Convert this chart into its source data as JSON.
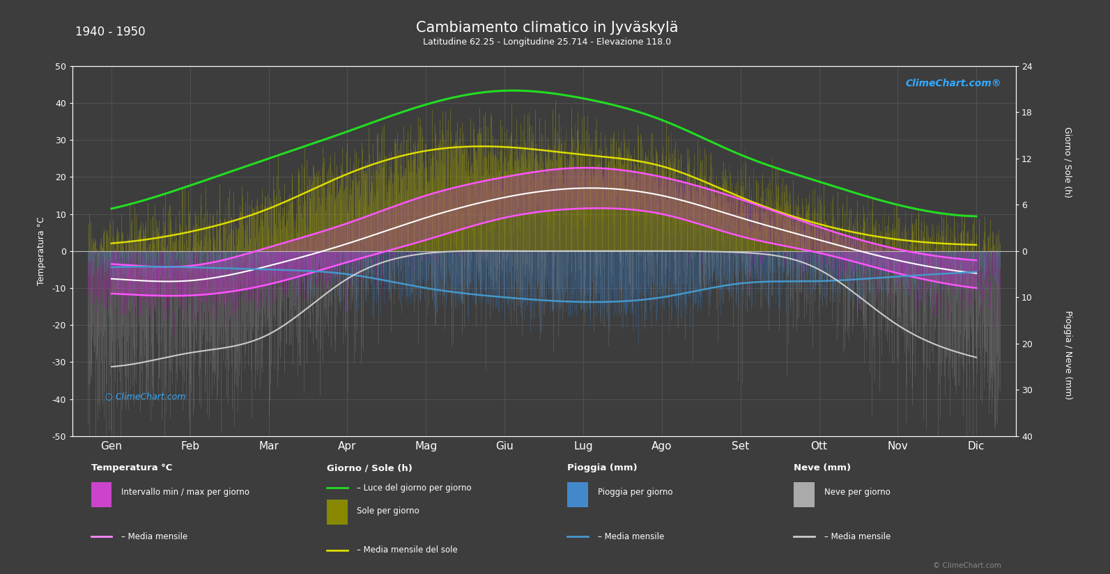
{
  "title": "Cambiamento climatico in Jyväskylä",
  "subtitle": "Latitudine 62.25 - Longitudine 25.714 - Elevazione 118.0",
  "period": "1940 - 1950",
  "background_color": "#3d3d3d",
  "months": [
    "Gen",
    "Feb",
    "Mar",
    "Apr",
    "Mag",
    "Giu",
    "Lug",
    "Ago",
    "Set",
    "Ott",
    "Nov",
    "Dic"
  ],
  "temp_mean": [
    -7.5,
    -8.0,
    -4.0,
    2.0,
    9.0,
    14.5,
    17.0,
    15.0,
    9.0,
    3.0,
    -2.5,
    -6.0
  ],
  "temp_max_mean": [
    -3.5,
    -4.0,
    1.0,
    7.5,
    15.0,
    20.0,
    22.5,
    20.0,
    14.0,
    6.5,
    0.5,
    -2.5
  ],
  "temp_min_mean": [
    -11.5,
    -12.0,
    -9.0,
    -3.0,
    3.0,
    9.0,
    11.5,
    10.0,
    4.0,
    -0.5,
    -6.0,
    -10.0
  ],
  "daylight": [
    5.5,
    8.5,
    12.0,
    15.5,
    19.0,
    20.8,
    19.8,
    17.0,
    12.5,
    9.0,
    6.0,
    4.5
  ],
  "sunshine_mean": [
    1.0,
    2.5,
    5.5,
    10.0,
    13.0,
    13.5,
    12.5,
    11.0,
    7.0,
    3.5,
    1.5,
    0.8
  ],
  "rain_mean": [
    3.5,
    3.5,
    4.0,
    5.0,
    8.0,
    10.0,
    11.0,
    10.0,
    7.0,
    6.5,
    5.5,
    4.5
  ],
  "snow_mean": [
    25.0,
    22.0,
    18.0,
    6.0,
    0.5,
    0.0,
    0.0,
    0.0,
    0.3,
    4.0,
    16.0,
    23.0
  ],
  "grid_color": "#5a5a5a",
  "daylight_color": "#22dd22",
  "sunshine_line_color": "#dddd00",
  "sunshine_fill_color": "#888800",
  "temp_fill_color": "#cc44cc",
  "rain_bar_color": "#4488cc",
  "snow_bar_color": "#aaaaaa",
  "pink_line_color": "#ff55ff",
  "white_line_color": "#ffffff",
  "blue_line_color": "#4499cc",
  "snow_line_color": "#cccccc"
}
